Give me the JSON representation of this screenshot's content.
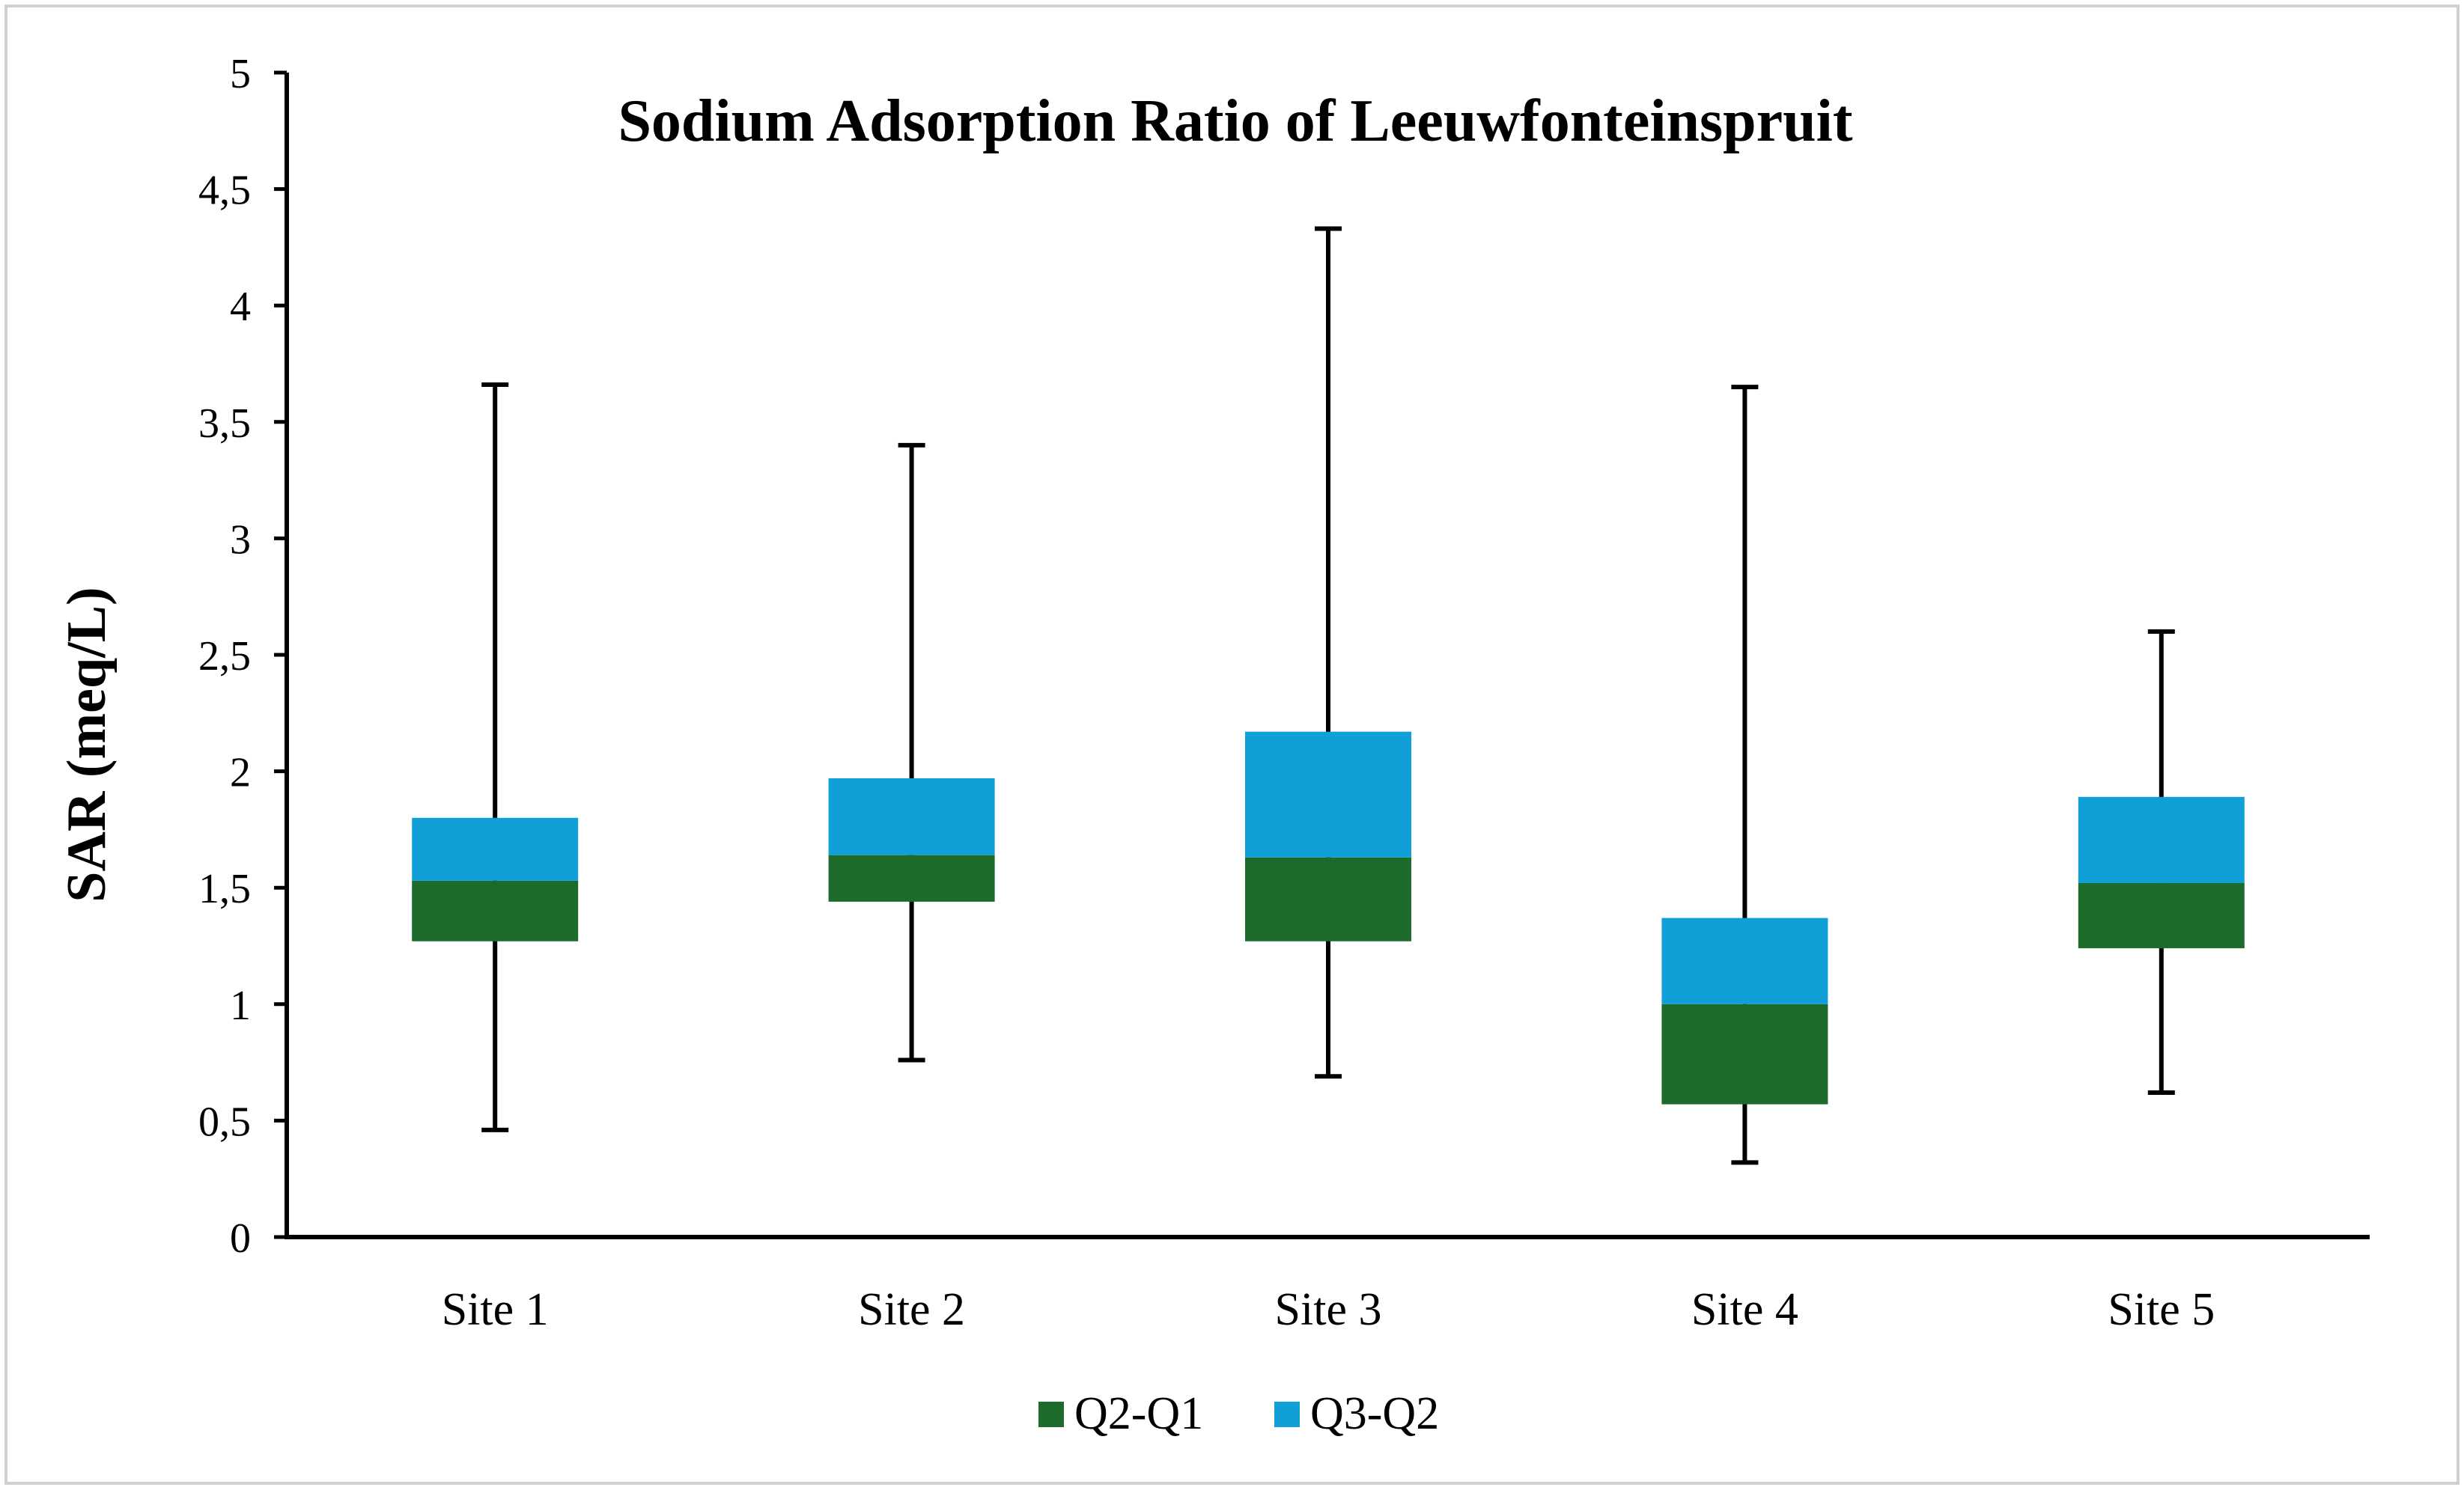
{
  "chart_data": {
    "type": "box",
    "title": "Sodium Adsorption Ratio of Leeuwfonteinspruit",
    "ylabel": "SAR (meq/L)",
    "xlabel": "",
    "ylim": [
      0,
      5
    ],
    "ytick_values": [
      0,
      0.5,
      1,
      1.5,
      2,
      2.5,
      3,
      3.5,
      4,
      4.5,
      5
    ],
    "ytick_labels": [
      "0",
      "0,5",
      "1",
      "1,5",
      "2",
      "2,5",
      "3",
      "3,5",
      "4",
      "4,5",
      "5"
    ],
    "categories": [
      "Site 1",
      "Site 2",
      "Site 3",
      "Site 4",
      "Site 5"
    ],
    "boxes": [
      {
        "min": 0.46,
        "q1": 1.27,
        "median": 1.53,
        "q3": 1.8,
        "max": 3.66
      },
      {
        "min": 0.76,
        "q1": 1.44,
        "median": 1.64,
        "q3": 1.97,
        "max": 3.4
      },
      {
        "min": 0.69,
        "q1": 1.27,
        "median": 1.63,
        "q3": 2.17,
        "max": 4.33
      },
      {
        "min": 0.32,
        "q1": 0.57,
        "median": 1.0,
        "q3": 1.37,
        "max": 3.65
      },
      {
        "min": 0.62,
        "q1": 1.24,
        "median": 1.52,
        "q3": 1.89,
        "max": 2.6
      }
    ],
    "series": [
      {
        "name": "Q2-Q1",
        "color": "#1c6b2a"
      },
      {
        "name": "Q3-Q2",
        "color": "#119fd8"
      }
    ],
    "legend_position": "bottom",
    "grid": false
  }
}
